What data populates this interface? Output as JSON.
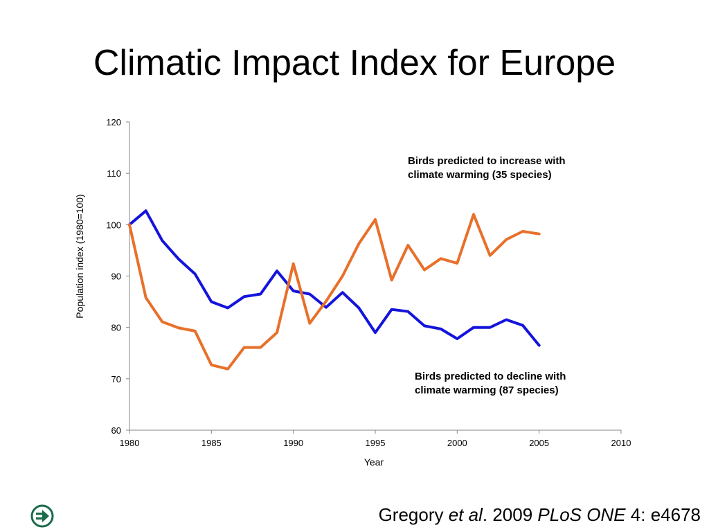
{
  "slide": {
    "title": "Climatic Impact Index for Europe",
    "citation": {
      "author": "Gregory ",
      "etal": "et al",
      "sep1": ". 2009 ",
      "journal": "PLoS ONE",
      "rest": " 4: e4678"
    },
    "nav_icon": "arrow-right-circle-icon"
  },
  "colors": {
    "decline_series": "#1414dc",
    "increase_series": "#e8702a",
    "icon_green": "#1a6b4a"
  },
  "chart_data": {
    "type": "line",
    "title": "",
    "xlabel": "Year",
    "ylabel": "Population index (1980=100)",
    "xlim": [
      1980,
      2010
    ],
    "ylim": [
      60,
      120
    ],
    "xticks": [
      1980,
      1985,
      1990,
      1995,
      2000,
      2005,
      2010
    ],
    "yticks": [
      60,
      70,
      80,
      90,
      100,
      110,
      120
    ],
    "grid": false,
    "x": [
      1980,
      1981,
      1982,
      1983,
      1984,
      1985,
      1986,
      1987,
      1988,
      1989,
      1990,
      1991,
      1992,
      1993,
      1994,
      1995,
      1996,
      1997,
      1998,
      1999,
      2000,
      2001,
      2002,
      2003,
      2004,
      2005
    ],
    "series": [
      {
        "key": "decline",
        "color": "#1414dc",
        "values": [
          100,
          102.7,
          96.9,
          93.3,
          90.4,
          85.0,
          83.8,
          86.0,
          86.5,
          91.0,
          87.1,
          86.5,
          83.9,
          86.8,
          83.8,
          79.0,
          83.5,
          83.1,
          80.3,
          79.7,
          77.8,
          80.0,
          80.0,
          81.5,
          80.4,
          76.5
        ]
      },
      {
        "key": "increase",
        "color": "#e8702a",
        "values": [
          100,
          85.8,
          81.1,
          79.9,
          79.3,
          72.7,
          71.9,
          76.1,
          76.1,
          79.0,
          92.4,
          80.8,
          85.1,
          90.0,
          96.3,
          101.0,
          89.2,
          96.0,
          91.2,
          93.4,
          92.5,
          102.0,
          94.0,
          97.1,
          98.7,
          98.2
        ]
      }
    ],
    "annotations": [
      {
        "series": "increase",
        "line1": "Birds predicted to increase with",
        "line2": "climate warming (35 species)"
      },
      {
        "series": "decline",
        "line1": "Birds predicted to decline with",
        "line2": "climate warming (87 species)"
      }
    ]
  }
}
